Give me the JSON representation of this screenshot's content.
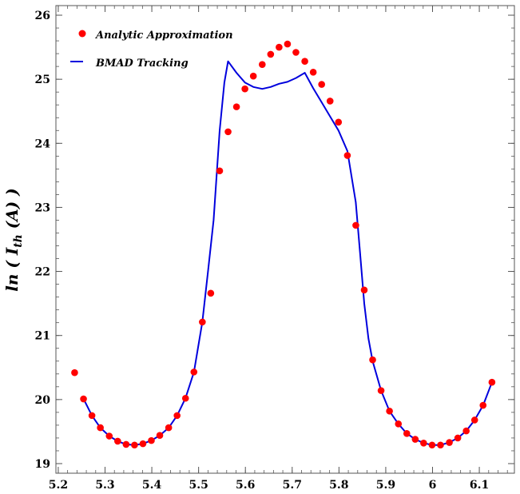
{
  "chart_data": {
    "type": "line",
    "title": "",
    "xlabel": "",
    "ylabel": "ln ( I_th (A) )",
    "xlim": [
      5.195,
      6.175
    ],
    "ylim": [
      18.85,
      26.15
    ],
    "xticks": [
      5.2,
      5.3,
      5.4,
      5.5,
      5.6,
      5.7,
      5.8,
      5.9,
      6,
      6.1
    ],
    "xtick_labels": [
      "5.2",
      "5.3",
      "5.4",
      "5.5",
      "5.6",
      "5.7",
      "5.8",
      "5.9",
      "6",
      "6.1"
    ],
    "yticks": [
      19,
      20,
      21,
      22,
      23,
      24,
      25,
      26
    ],
    "ytick_labels": [
      "19",
      "20",
      "21",
      "22",
      "23",
      "24",
      "25",
      "26"
    ],
    "grid": false,
    "legend_position": "top-left",
    "colors": {
      "analytic": "#ff0000",
      "bmad": "#0000dd"
    },
    "series": [
      {
        "name": "Analytic Approximation",
        "kind": "scatter",
        "x": [
          5.235,
          5.254,
          5.272,
          5.29,
          5.309,
          5.327,
          5.345,
          5.363,
          5.381,
          5.399,
          5.417,
          5.436,
          5.454,
          5.472,
          5.49,
          5.508,
          5.526,
          5.545,
          5.563,
          5.581,
          5.599,
          5.617,
          5.636,
          5.654,
          5.672,
          5.69,
          5.708,
          5.727,
          5.745,
          5.763,
          5.781,
          5.799,
          5.818,
          5.836,
          5.854,
          5.872,
          5.89,
          5.908,
          5.927,
          5.945,
          5.963,
          5.981,
          5.999,
          6.017,
          6.036,
          6.054,
          6.072,
          6.09,
          6.108,
          6.127
        ],
        "y": [
          20.42,
          20.01,
          19.75,
          19.56,
          19.43,
          19.35,
          19.3,
          19.29,
          19.31,
          19.36,
          19.44,
          19.56,
          19.75,
          20.02,
          20.43,
          21.21,
          21.66,
          23.57,
          24.18,
          24.57,
          24.85,
          25.05,
          25.23,
          25.39,
          25.5,
          25.55,
          25.42,
          25.28,
          25.11,
          24.92,
          24.66,
          24.33,
          23.81,
          22.72,
          21.71,
          20.62,
          20.14,
          19.82,
          19.62,
          19.47,
          19.38,
          19.32,
          19.29,
          19.29,
          19.33,
          19.4,
          19.51,
          19.68,
          19.91,
          20.27
        ]
      },
      {
        "name": "BMAD Tracking",
        "kind": "line",
        "x": [
          5.254,
          5.272,
          5.29,
          5.309,
          5.327,
          5.345,
          5.363,
          5.381,
          5.399,
          5.417,
          5.436,
          5.454,
          5.472,
          5.49,
          5.508,
          5.52,
          5.532,
          5.545,
          5.555,
          5.563,
          5.581,
          5.599,
          5.617,
          5.636,
          5.654,
          5.672,
          5.69,
          5.708,
          5.727,
          5.745,
          5.763,
          5.781,
          5.799,
          5.818,
          5.836,
          5.845,
          5.854,
          5.863,
          5.872,
          5.89,
          5.908,
          5.927,
          5.945,
          5.963,
          5.981,
          5.999,
          6.017,
          6.036,
          6.054,
          6.072,
          6.09,
          6.108,
          6.127
        ],
        "y": [
          20.01,
          19.75,
          19.56,
          19.43,
          19.35,
          19.3,
          19.29,
          19.31,
          19.36,
          19.44,
          19.56,
          19.75,
          20.02,
          20.43,
          21.21,
          22.0,
          22.8,
          24.2,
          24.95,
          25.28,
          25.1,
          24.95,
          24.88,
          24.85,
          24.88,
          24.93,
          24.96,
          25.02,
          25.1,
          24.86,
          24.64,
          24.42,
          24.2,
          23.88,
          23.08,
          22.3,
          21.5,
          20.95,
          20.6,
          20.14,
          19.82,
          19.62,
          19.47,
          19.38,
          19.32,
          19.29,
          19.29,
          19.33,
          19.4,
          19.51,
          19.68,
          19.91,
          20.27
        ]
      }
    ]
  }
}
